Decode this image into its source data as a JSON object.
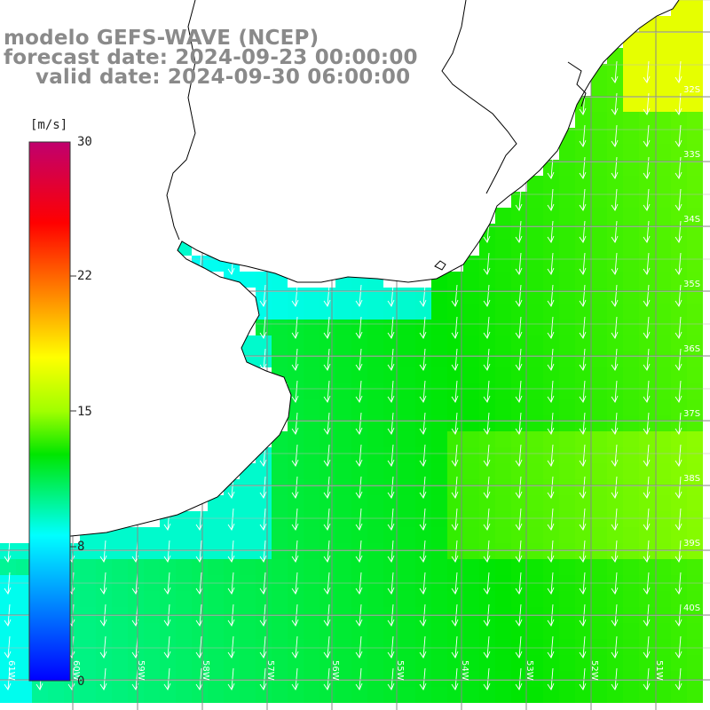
{
  "title": {
    "line1": "modelo GEFS-WAVE (NCEP)",
    "line2": "forecast date: 2024-09-23 00:00:00",
    "line3": "valid date: 2024-09-30 06:00:00"
  },
  "colorbar": {
    "unit_label": "[m/s]",
    "min": 0,
    "max": 30,
    "tick_labels": [
      "30",
      "22",
      "15",
      "8",
      "0"
    ],
    "tick_values": [
      30,
      22,
      15,
      8,
      0
    ],
    "colors": [
      "#0000ff",
      "#00ffff",
      "#00ff00",
      "#ffff00",
      "#ff0000",
      "#c0006e"
    ]
  },
  "map": {
    "lat_labels": [
      "32S",
      "33S",
      "34S",
      "35S",
      "36S",
      "37S",
      "38S",
      "39S",
      "40S"
    ],
    "lon_labels": [
      "61W",
      "60W",
      "59W",
      "58W",
      "57W",
      "56W",
      "55W",
      "54W",
      "53W",
      "52W",
      "51W"
    ],
    "wind_direction": "from north (arrows pointing south)",
    "land_color": "#ffffff",
    "grid_color": "#888888"
  }
}
